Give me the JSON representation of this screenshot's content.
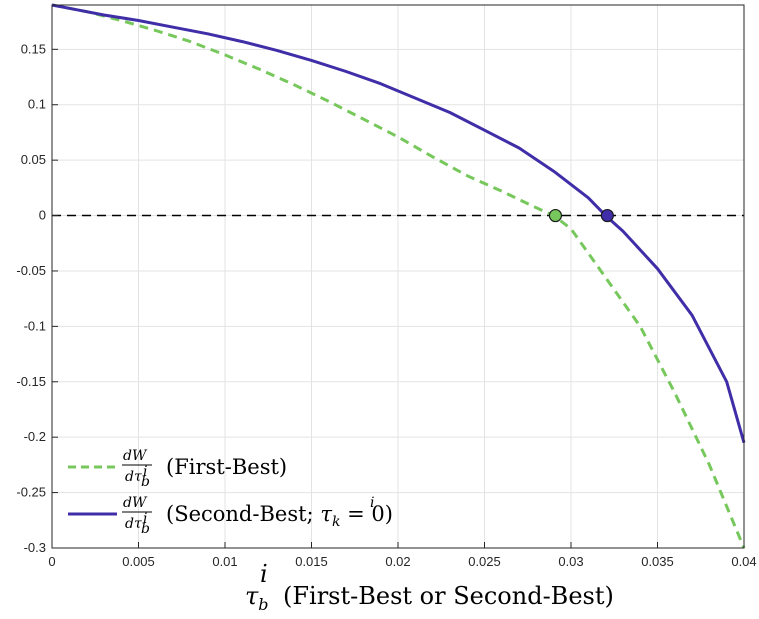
{
  "chart_data": {
    "type": "line",
    "xlim": [
      0,
      0.04
    ],
    "ylim": [
      -0.3,
      0.19
    ],
    "grid": true,
    "legend_position": "bottom-left",
    "xticks": [
      "0",
      "0.005",
      "0.01",
      "0.015",
      "0.02",
      "0.025",
      "0.03",
      "0.035",
      "0.04"
    ],
    "yticks": [
      "0.15",
      "0.1",
      "0.05",
      "0",
      "-0.05",
      "-0.1",
      "-0.15",
      "-0.2",
      "-0.25",
      "-0.3"
    ],
    "xtick_values": [
      0,
      0.005,
      0.01,
      0.015,
      0.02,
      0.025,
      0.03,
      0.035,
      0.04
    ],
    "ytick_values": [
      0.15,
      0.1,
      0.05,
      0,
      -0.05,
      -0.1,
      -0.15,
      -0.2,
      -0.25,
      -0.3
    ],
    "xlabel": {
      "symbol": "τ",
      "sub": "b",
      "sup": "i",
      "text": "(First-Best or Second-Best)"
    },
    "zero_line": 0,
    "series": [
      {
        "name": "dW/dτ_b^i (First-Best)",
        "legend_fraction_num": "dW",
        "legend_fraction_den": "dτ",
        "legend_den_sub": "b",
        "legend_den_sup": "i",
        "legend_suffix": "(First-Best)",
        "color": "#77c85c",
        "style": "dashed",
        "x": [
          0,
          0.002,
          0.004,
          0.006,
          0.008,
          0.01,
          0.012,
          0.014,
          0.016,
          0.018,
          0.02,
          0.022,
          0.024,
          0.026,
          0.028,
          0.029,
          0.03,
          0.032,
          0.034,
          0.036,
          0.038,
          0.04
        ],
        "y": [
          0.19,
          0.184,
          0.176,
          0.167,
          0.157,
          0.145,
          0.132,
          0.118,
          0.103,
          0.087,
          0.071,
          0.053,
          0.036,
          0.022,
          0.007,
          0.0,
          -0.012,
          -0.056,
          -0.1,
          -0.16,
          -0.225,
          -0.3
        ],
        "marker": {
          "x": 0.0291,
          "y": 0,
          "color": "#77c85c"
        }
      },
      {
        "name": "dW/dτ_b^i (Second-Best; τ_k^i = 0)",
        "legend_fraction_num": "dW",
        "legend_fraction_den": "dτ",
        "legend_den_sub": "b",
        "legend_den_sup": "i",
        "legend_suffix_pre": "(Second-Best; ",
        "legend_tau_sub": "k",
        "legend_tau_sup": "i",
        "legend_suffix_post": " = 0)",
        "color": "#3f2ea8",
        "style": "solid",
        "x": [
          0,
          0.001,
          0.003,
          0.005,
          0.007,
          0.009,
          0.011,
          0.013,
          0.015,
          0.017,
          0.019,
          0.021,
          0.023,
          0.025,
          0.027,
          0.029,
          0.031,
          0.032,
          0.033,
          0.035,
          0.037,
          0.039,
          0.04
        ],
        "y": [
          0.19,
          0.187,
          0.181,
          0.176,
          0.17,
          0.164,
          0.157,
          0.149,
          0.14,
          0.13,
          0.119,
          0.106,
          0.093,
          0.077,
          0.061,
          0.04,
          0.016,
          0.0,
          -0.014,
          -0.048,
          -0.09,
          -0.15,
          -0.205
        ],
        "marker": {
          "x": 0.0321,
          "y": 0,
          "color": "#3f2ea8"
        }
      }
    ]
  }
}
